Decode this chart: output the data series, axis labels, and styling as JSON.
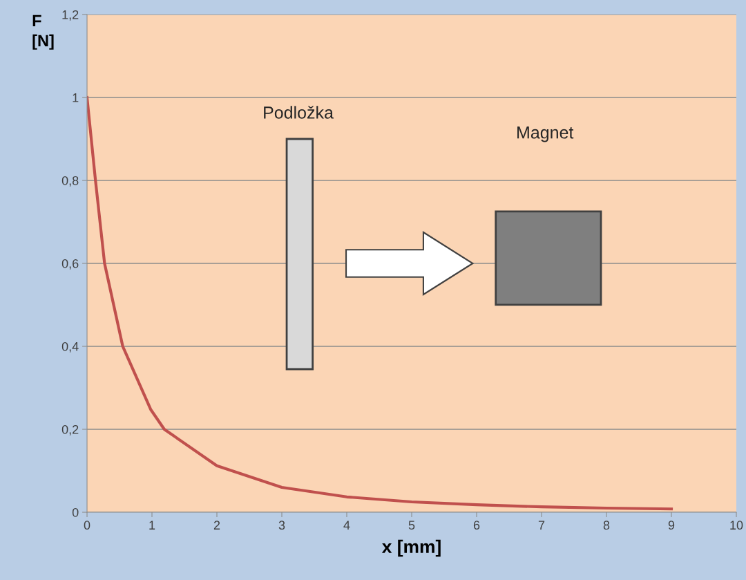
{
  "chart_data": {
    "type": "line",
    "xlabel": "x [mm]",
    "ylabel": "F\n[N]",
    "annotations": [
      "Podložka",
      "Magnet"
    ],
    "x": [
      0,
      0.13,
      0.27,
      0.55,
      0.98,
      1.19,
      2,
      3,
      4,
      5,
      6,
      7,
      8,
      9
    ],
    "series": [
      {
        "color": "#c0504d",
        "values": [
          1,
          0.8,
          0.6,
          0.4,
          0.248,
          0.2,
          0.112,
          0.06,
          0.037,
          0.025,
          0.018,
          0.013,
          0.01,
          0.008
        ]
      }
    ],
    "xlim": [
      0,
      10
    ],
    "xticks": [
      0,
      1,
      2,
      3,
      4,
      5,
      6,
      7,
      8,
      9,
      10
    ],
    "ylim": [
      0,
      1.2
    ],
    "yticks": [
      0,
      {
        "value": 0.2,
        "label": "0,2"
      },
      {
        "value": 0.4,
        "label": "0,4"
      },
      {
        "value": 0.6,
        "label": "0,6"
      },
      {
        "value": 0.8,
        "label": "0,8"
      },
      1,
      {
        "value": 1.2,
        "label": "1,2"
      }
    ],
    "grid": "y",
    "marker": "none",
    "line_style": "solid"
  }
}
